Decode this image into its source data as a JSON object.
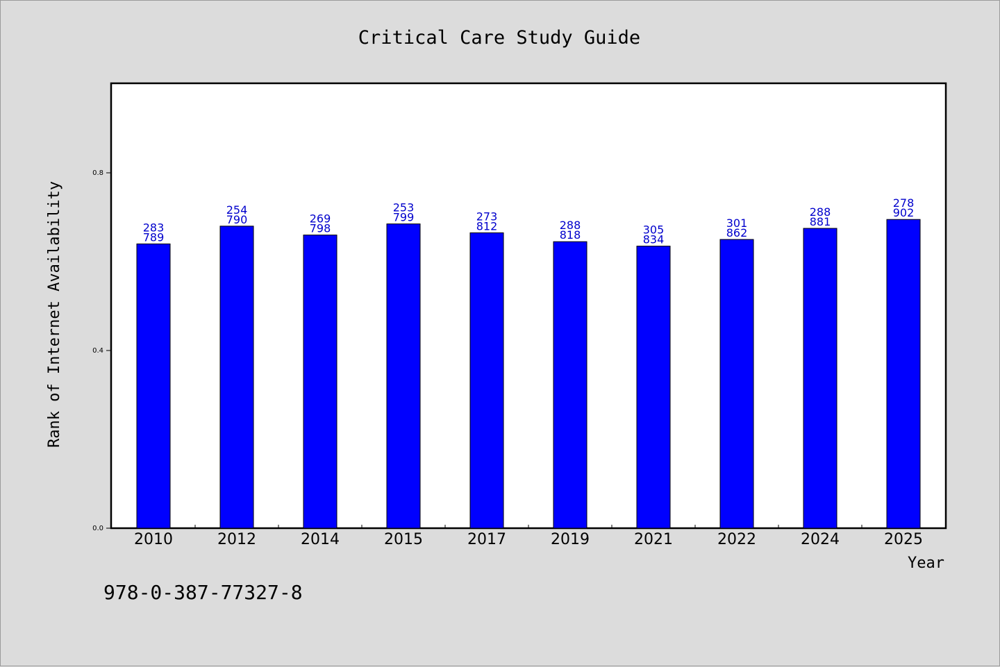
{
  "chart_data": {
    "type": "bar",
    "title": "Critical Care Study Guide",
    "xlabel": "Year",
    "ylabel": "Rank of Internet Availability",
    "categories": [
      "2010",
      "2012",
      "2014",
      "2015",
      "2017",
      "2019",
      "2021",
      "2022",
      "2024",
      "2025"
    ],
    "values": [
      0.64,
      0.68,
      0.66,
      0.685,
      0.665,
      0.645,
      0.635,
      0.65,
      0.675,
      0.695
    ],
    "data_labels": [
      [
        "283",
        "789"
      ],
      [
        "254",
        "790"
      ],
      [
        "269",
        "798"
      ],
      [
        "253",
        "799"
      ],
      [
        "273",
        "812"
      ],
      [
        "288",
        "818"
      ],
      [
        "305",
        "834"
      ],
      [
        "301",
        "862"
      ],
      [
        "288",
        "881"
      ],
      [
        "278",
        "902"
      ]
    ],
    "ylim": [
      0,
      1.0
    ],
    "yticks": [
      0.0,
      0.4,
      0.8
    ],
    "ytick_labels": [
      "0.0",
      "0.4",
      "0.8"
    ],
    "grid": false,
    "bar_color": "#0000ff",
    "label_color": "#0000cc"
  },
  "footer": {
    "isbn": "978-0-387-77327-8"
  }
}
